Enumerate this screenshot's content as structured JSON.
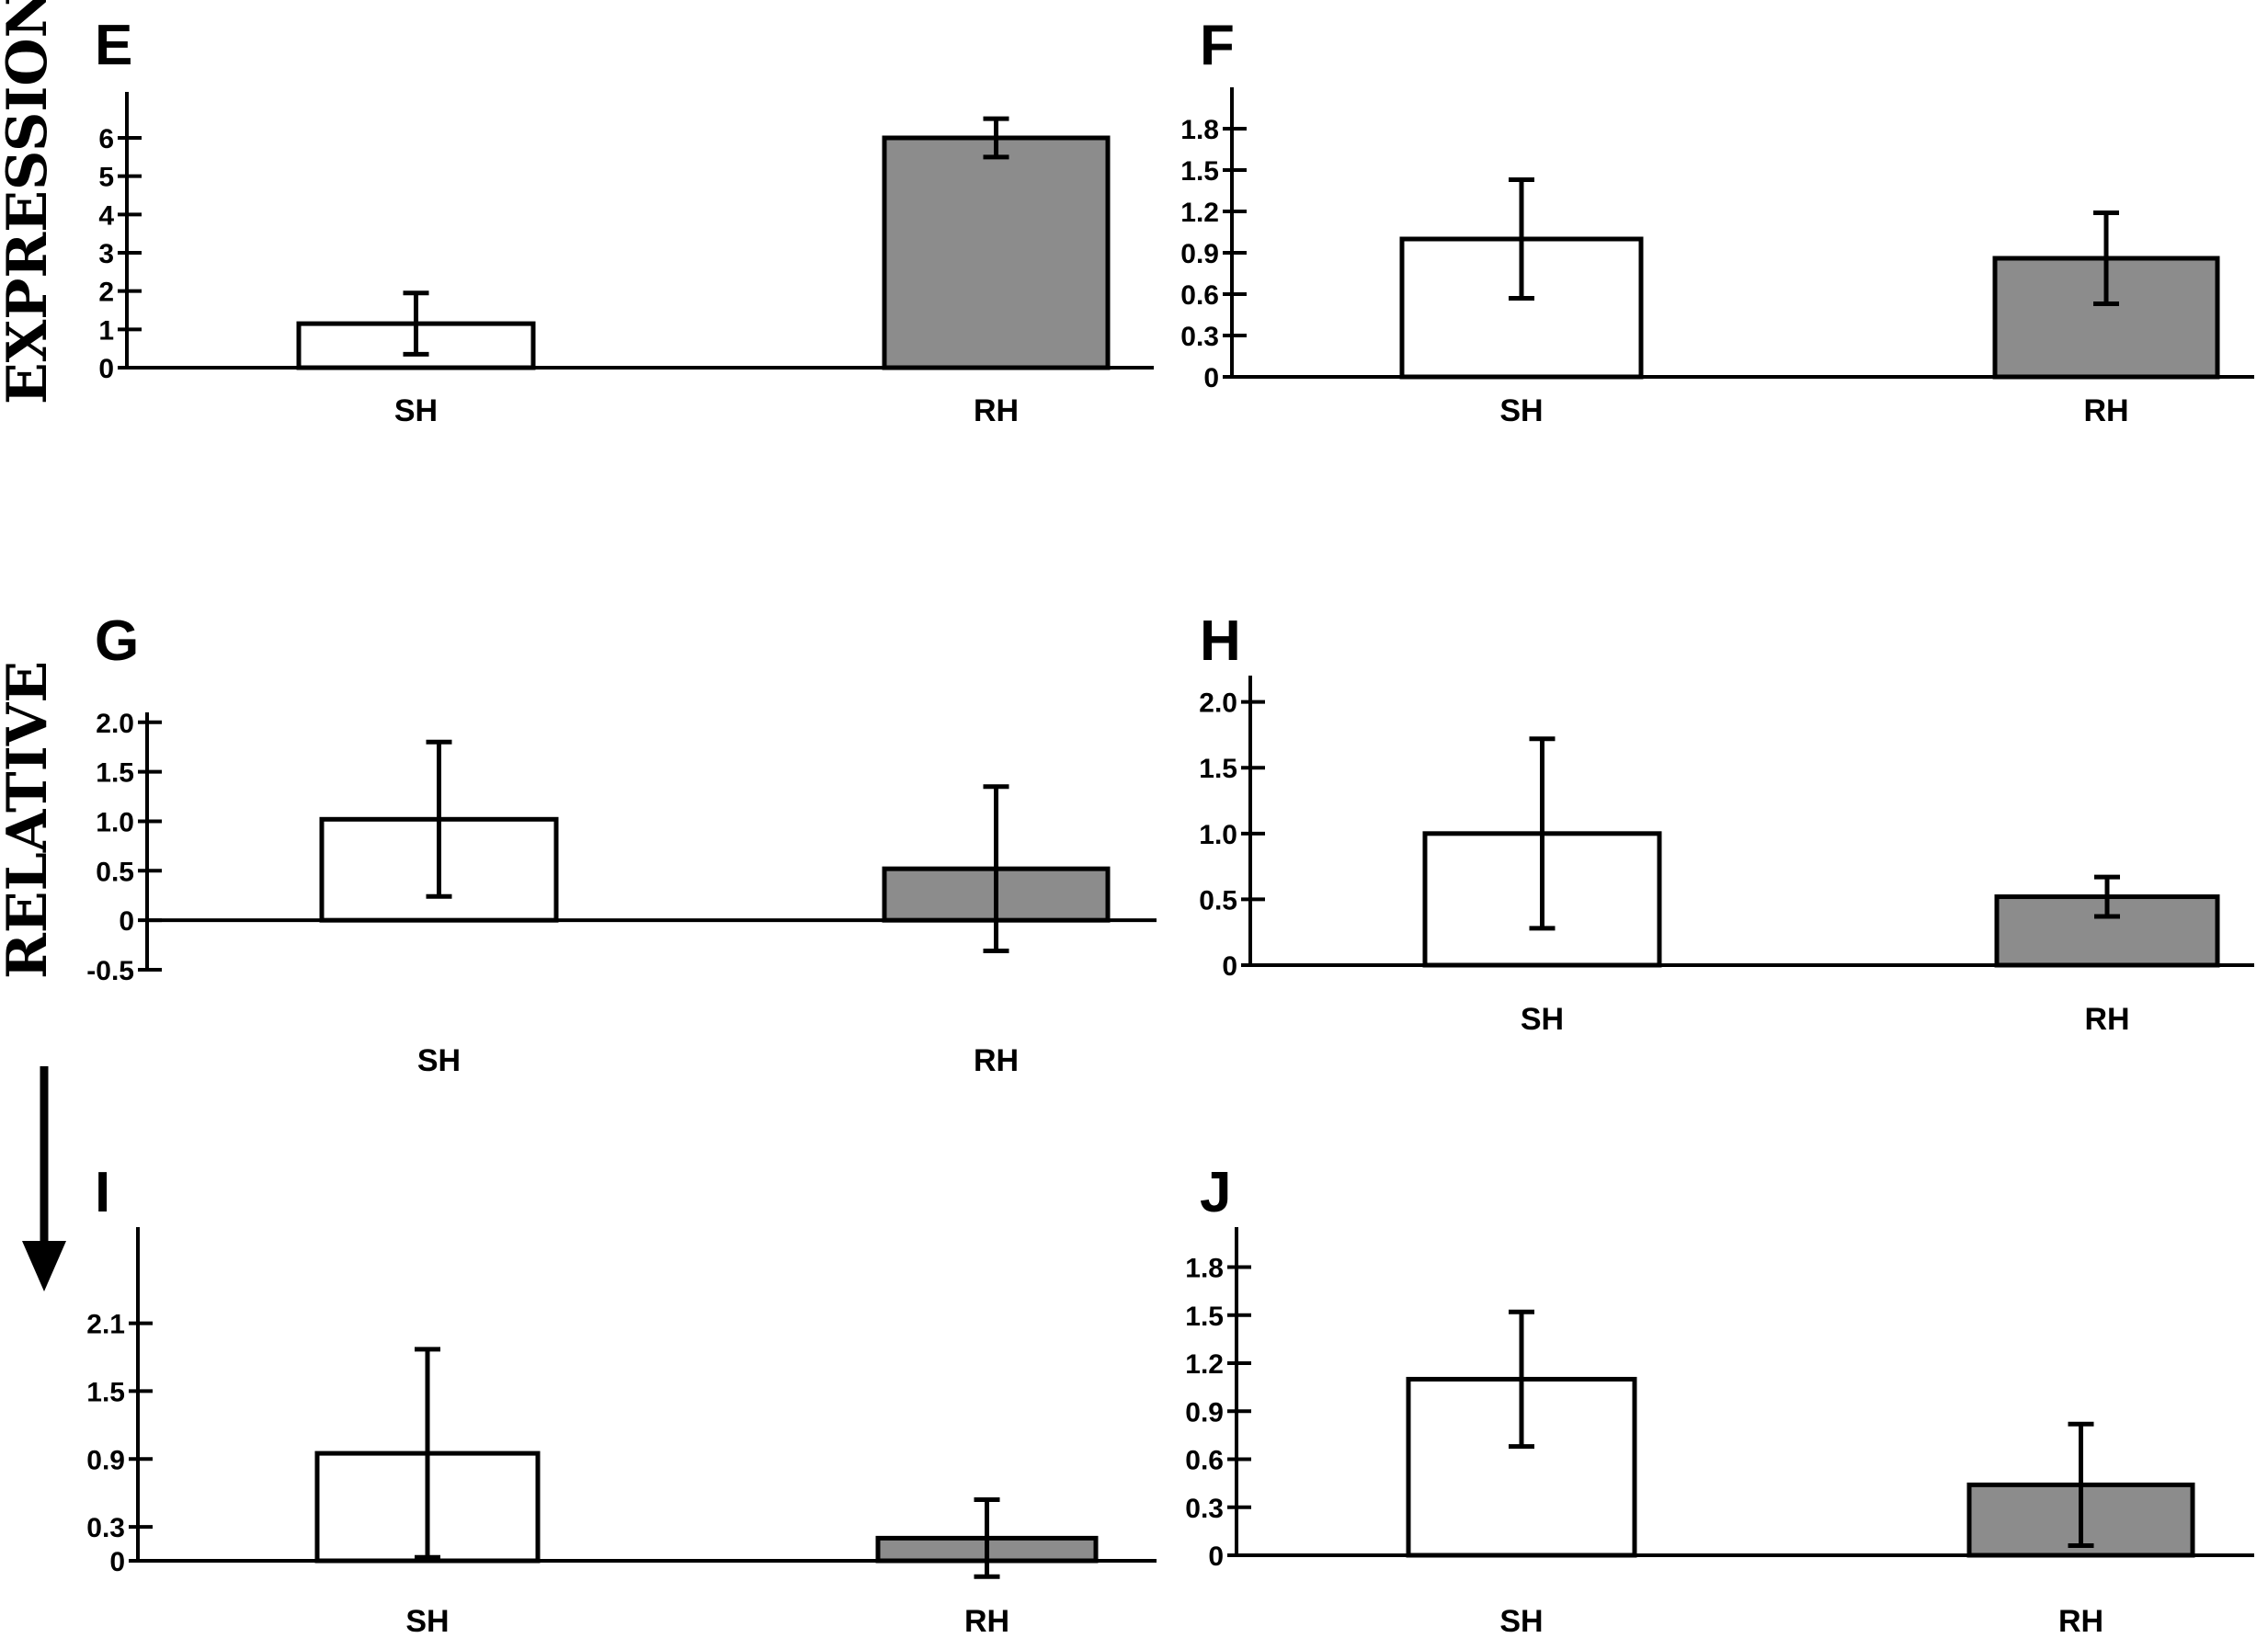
{
  "y_axis_label_words": [
    "EXPRESSION",
    "RELATIVE"
  ],
  "colors": {
    "sh_fill": "#ffffff",
    "rh_fill": "#8c8c8c",
    "stroke": "#000000"
  },
  "chart_data": [
    {
      "panel": "E",
      "type": "bar",
      "categories": [
        "SH",
        "RH"
      ],
      "values": [
        1.15,
        6.0
      ],
      "errors": [
        0.8,
        0.5
      ],
      "yticks": [
        "0",
        "1",
        "2",
        "3",
        "4",
        "5",
        "6"
      ],
      "ylim": [
        0,
        7.2
      ]
    },
    {
      "panel": "F",
      "type": "bar",
      "categories": [
        "SH",
        "RH"
      ],
      "values": [
        1.0,
        0.86
      ],
      "errors": [
        0.43,
        0.33
      ],
      "yticks": [
        "0",
        "0.3",
        "0.6",
        "0.9",
        "1.2",
        "1.5",
        "1.8"
      ],
      "ylim": [
        0,
        2.1
      ]
    },
    {
      "panel": "G",
      "type": "bar",
      "categories": [
        "SH",
        "RH"
      ],
      "values": [
        1.02,
        0.52
      ],
      "errors": [
        0.78,
        0.83
      ],
      "yticks": [
        "-0.5",
        "0",
        "0.5",
        "1.0",
        "1.5",
        "2.0"
      ],
      "ylim": [
        -0.5,
        2.1
      ]
    },
    {
      "panel": "H",
      "type": "bar",
      "categories": [
        "SH",
        "RH"
      ],
      "values": [
        1.0,
        0.52
      ],
      "errors": [
        0.72,
        0.15
      ],
      "yticks": [
        "0",
        "0.5",
        "1.0",
        "1.5",
        "2.0"
      ],
      "ylim": [
        0,
        2.2
      ]
    },
    {
      "panel": "I",
      "type": "bar",
      "categories": [
        "SH",
        "RH"
      ],
      "values": [
        0.95,
        0.2
      ],
      "errors": [
        0.92,
        0.34
      ],
      "yticks": [
        "0",
        "0.3",
        "0.9",
        "1.5",
        "2.1"
      ],
      "ylim": [
        0,
        2.95
      ]
    },
    {
      "panel": "J",
      "type": "bar",
      "categories": [
        "SH",
        "RH"
      ],
      "values": [
        1.1,
        0.44
      ],
      "errors": [
        0.42,
        0.38
      ],
      "yticks": [
        "0",
        "0.3",
        "0.6",
        "0.9",
        "1.2",
        "1.5",
        "1.8"
      ],
      "ylim": [
        0,
        2.05
      ]
    }
  ]
}
